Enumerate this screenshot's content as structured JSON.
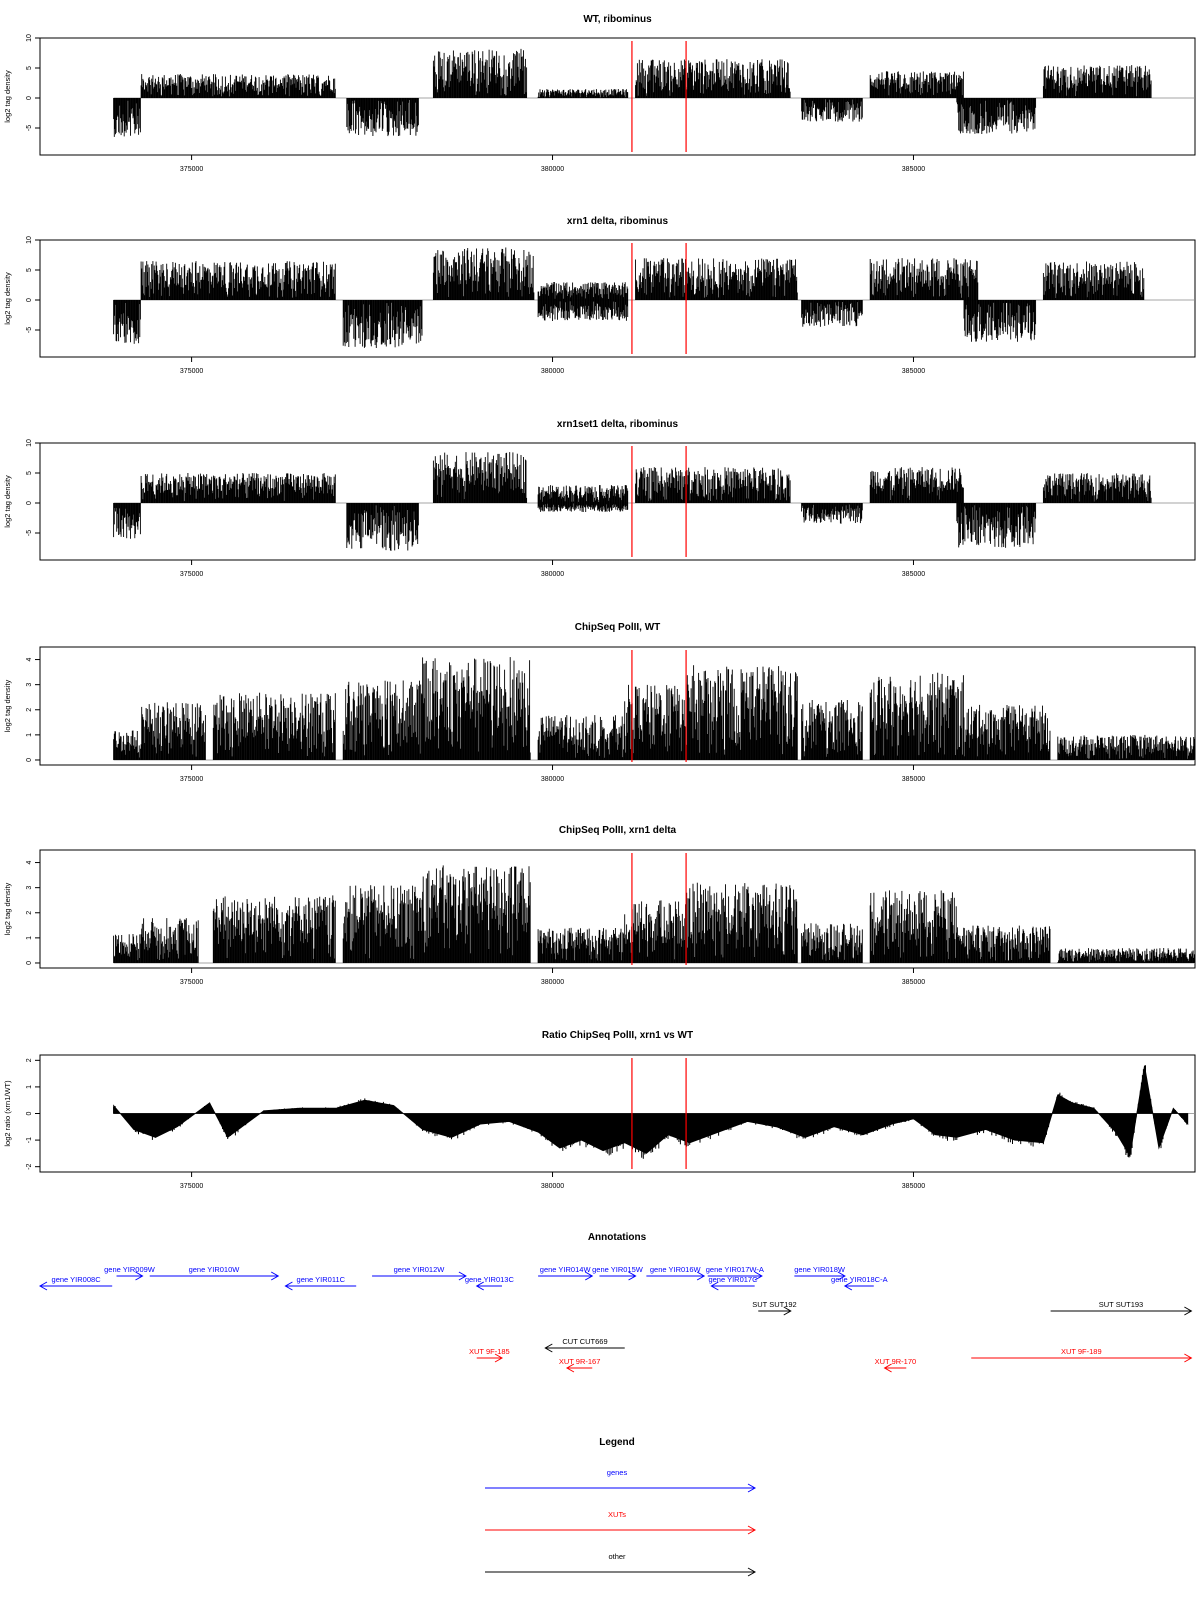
{
  "chart_data": [
    {
      "type": "bar",
      "title": "WT, ribominus",
      "ylabel": "log2 tag density",
      "xlim": [
        372900,
        388900
      ],
      "ylim": [
        -9.5,
        10
      ],
      "yticks": [
        -5,
        0,
        5,
        10
      ],
      "xticks": [
        375000,
        380000,
        385000
      ],
      "markers": [
        381100,
        381850
      ],
      "segments": [
        {
          "x": [
            373920,
            374300
          ],
          "sign": -1,
          "amp": 6.5
        },
        {
          "x": [
            374300,
            377000
          ],
          "sign": 1,
          "amp": 4.0
        },
        {
          "x": [
            377150,
            378150
          ],
          "sign": -1,
          "amp": 6.5
        },
        {
          "x": [
            378350,
            379650
          ],
          "sign": 1,
          "amp": 8.2
        },
        {
          "x": [
            379800,
            381050
          ],
          "sign": 1,
          "amp": 1.5
        },
        {
          "x": [
            381150,
            383300
          ],
          "sign": 1,
          "amp": 6.5
        },
        {
          "x": [
            383450,
            384300
          ],
          "sign": -1,
          "amp": 4.0
        },
        {
          "x": [
            384400,
            385700
          ],
          "sign": 1,
          "amp": 4.5
        },
        {
          "x": [
            385600,
            386700
          ],
          "sign": -1,
          "amp": 6.0
        },
        {
          "x": [
            386800,
            388300
          ],
          "sign": 1,
          "amp": 5.5
        }
      ]
    },
    {
      "type": "bar",
      "title": "xrn1 delta, ribominus",
      "ylabel": "log2 tag density",
      "xlim": [
        372900,
        388900
      ],
      "ylim": [
        -9.5,
        10
      ],
      "yticks": [
        -5,
        0,
        5,
        10
      ],
      "xticks": [
        375000,
        380000,
        385000
      ],
      "markers": [
        381100,
        381850
      ],
      "segments": [
        {
          "x": [
            373920,
            374300
          ],
          "sign": -1,
          "amp": 7.5
        },
        {
          "x": [
            374300,
            377000
          ],
          "sign": 1,
          "amp": 6.5
        },
        {
          "x": [
            377100,
            378200
          ],
          "sign": -1,
          "amp": 8.0
        },
        {
          "x": [
            378350,
            379750
          ],
          "sign": 1,
          "amp": 8.8
        },
        {
          "x": [
            379800,
            381050
          ],
          "sign": 1,
          "amp": 3.0
        },
        {
          "x": [
            379800,
            381050
          ],
          "sign": -1,
          "amp": 3.5
        },
        {
          "x": [
            381150,
            383400
          ],
          "sign": 1,
          "amp": 7.0
        },
        {
          "x": [
            383450,
            384300
          ],
          "sign": -1,
          "amp": 4.5
        },
        {
          "x": [
            384400,
            385900
          ],
          "sign": 1,
          "amp": 7.0
        },
        {
          "x": [
            385700,
            386700
          ],
          "sign": -1,
          "amp": 7.0
        },
        {
          "x": [
            386800,
            388200
          ],
          "sign": 1,
          "amp": 6.5
        }
      ]
    },
    {
      "type": "bar",
      "title": "xrn1set1 delta, ribominus",
      "ylabel": "log2 tag density",
      "xlim": [
        372900,
        388900
      ],
      "ylim": [
        -9.5,
        10
      ],
      "yticks": [
        -5,
        0,
        5,
        10
      ],
      "xticks": [
        375000,
        380000,
        385000
      ],
      "markers": [
        381100,
        381850
      ],
      "segments": [
        {
          "x": [
            373920,
            374300
          ],
          "sign": -1,
          "amp": 6.0
        },
        {
          "x": [
            374300,
            377000
          ],
          "sign": 1,
          "amp": 5.0
        },
        {
          "x": [
            377150,
            378150
          ],
          "sign": -1,
          "amp": 8.0
        },
        {
          "x": [
            378350,
            379650
          ],
          "sign": 1,
          "amp": 8.5
        },
        {
          "x": [
            379800,
            381050
          ],
          "sign": 1,
          "amp": 3.0
        },
        {
          "x": [
            379800,
            381050
          ],
          "sign": -1,
          "amp": 1.5
        },
        {
          "x": [
            381150,
            383300
          ],
          "sign": 1,
          "amp": 6.0
        },
        {
          "x": [
            383450,
            384300
          ],
          "sign": -1,
          "amp": 3.5
        },
        {
          "x": [
            384400,
            385700
          ],
          "sign": 1,
          "amp": 6.0
        },
        {
          "x": [
            385600,
            386700
          ],
          "sign": -1,
          "amp": 7.5
        },
        {
          "x": [
            386800,
            388300
          ],
          "sign": 1,
          "amp": 5.0
        }
      ]
    },
    {
      "type": "bar",
      "title": "ChipSeq PolII, WT",
      "ylabel": "log2 tag density",
      "xlim": [
        372900,
        388900
      ],
      "ylim": [
        -0.2,
        4.5
      ],
      "yticks": [
        0,
        1,
        2,
        3,
        4
      ],
      "xticks": [
        375000,
        380000,
        385000
      ],
      "markers": [
        381100,
        381850
      ],
      "segments": [
        {
          "x": [
            373920,
            374300
          ],
          "sign": 1,
          "amp": 1.2
        },
        {
          "x": [
            374300,
            375200
          ],
          "sign": 1,
          "amp": 2.3
        },
        {
          "x": [
            375300,
            377000
          ],
          "sign": 1,
          "amp": 2.7
        },
        {
          "x": [
            377100,
            378200
          ],
          "sign": 1,
          "amp": 3.2
        },
        {
          "x": [
            378200,
            379700
          ],
          "sign": 1,
          "amp": 4.1
        },
        {
          "x": [
            379800,
            381000
          ],
          "sign": 1,
          "amp": 1.8
        },
        {
          "x": [
            381000,
            381850
          ],
          "sign": 1,
          "amp": 3.0
        },
        {
          "x": [
            381850,
            383400
          ],
          "sign": 1,
          "amp": 3.8
        },
        {
          "x": [
            383450,
            384300
          ],
          "sign": 1,
          "amp": 2.4
        },
        {
          "x": [
            384400,
            385700
          ],
          "sign": 1,
          "amp": 3.5
        },
        {
          "x": [
            385700,
            386900
          ],
          "sign": 1,
          "amp": 2.2
        },
        {
          "x": [
            387000,
            388900
          ],
          "sign": 1,
          "amp": 1.0
        }
      ]
    },
    {
      "type": "bar",
      "title": "ChipSeq PolII, xrn1 delta",
      "ylabel": "log2 tag density",
      "xlim": [
        372900,
        388900
      ],
      "ylim": [
        -0.2,
        4.5
      ],
      "yticks": [
        0,
        1,
        2,
        3,
        4
      ],
      "xticks": [
        375000,
        380000,
        385000
      ],
      "markers": [
        381100,
        381850
      ],
      "segments": [
        {
          "x": [
            373920,
            374300
          ],
          "sign": 1,
          "amp": 1.2
        },
        {
          "x": [
            374300,
            375100
          ],
          "sign": 1,
          "amp": 1.8
        },
        {
          "x": [
            375300,
            377000
          ],
          "sign": 1,
          "amp": 2.7
        },
        {
          "x": [
            377100,
            378200
          ],
          "sign": 1,
          "amp": 3.1
        },
        {
          "x": [
            378200,
            379700
          ],
          "sign": 1,
          "amp": 3.9
        },
        {
          "x": [
            379800,
            381000
          ],
          "sign": 1,
          "amp": 1.4
        },
        {
          "x": [
            381000,
            381850
          ],
          "sign": 1,
          "amp": 2.5
        },
        {
          "x": [
            381850,
            383400
          ],
          "sign": 1,
          "amp": 3.2
        },
        {
          "x": [
            383450,
            384300
          ],
          "sign": 1,
          "amp": 1.6
        },
        {
          "x": [
            384400,
            385600
          ],
          "sign": 1,
          "amp": 2.9
        },
        {
          "x": [
            385600,
            386900
          ],
          "sign": 1,
          "amp": 1.5
        },
        {
          "x": [
            387000,
            388900
          ],
          "sign": 1,
          "amp": 0.6
        }
      ]
    },
    {
      "type": "area",
      "title": "Ratio ChipSeq PolII, xrn1 vs WT",
      "ylabel": "log2 ratio (xrn1/WT)",
      "xlim": [
        372900,
        388900
      ],
      "ylim": [
        -2.2,
        2.2
      ],
      "yticks": [
        -2,
        -1,
        0,
        1,
        2
      ],
      "xticks": [
        375000,
        380000,
        385000
      ],
      "markers": [
        381100,
        381850
      ],
      "x": [
        373920,
        374200,
        374500,
        374800,
        375000,
        375250,
        375500,
        376000,
        376500,
        377000,
        377400,
        377800,
        378200,
        378600,
        379000,
        379400,
        379800,
        380100,
        380400,
        380700,
        381000,
        381300,
        381600,
        381900,
        382300,
        382700,
        383100,
        383500,
        383900,
        384300,
        384700,
        385000,
        385300,
        385600,
        386000,
        386400,
        386800,
        387000,
        387200,
        387500,
        387800,
        388000,
        388200,
        388400,
        388600,
        388800
      ],
      "y": [
        0.3,
        -0.6,
        -0.9,
        -0.5,
        -0.1,
        0.4,
        -0.9,
        0.1,
        0.2,
        0.2,
        0.5,
        0.3,
        -0.6,
        -0.9,
        -0.4,
        -0.3,
        -0.7,
        -1.3,
        -1.0,
        -1.4,
        -1.1,
        -1.5,
        -0.8,
        -1.1,
        -0.7,
        -0.3,
        -0.5,
        -0.9,
        -0.5,
        -0.8,
        -0.4,
        -0.2,
        -0.8,
        -0.9,
        -0.6,
        -1.0,
        -1.1,
        0.7,
        0.4,
        0.2,
        -0.7,
        -1.6,
        1.8,
        -1.3,
        0.2,
        -0.4
      ]
    }
  ],
  "annotations": {
    "title": "Annotations",
    "xlim": [
      372900,
      388900
    ],
    "items": [
      {
        "label": "gene YIR008C",
        "color": "#0000ff",
        "kind": "gene",
        "strand": "-",
        "start": 372900,
        "end": 373900,
        "row": 1
      },
      {
        "label": "gene YIR009W",
        "color": "#0000ff",
        "kind": "gene",
        "strand": "+",
        "start": 373960,
        "end": 374320,
        "row": 0
      },
      {
        "label": "gene YIR010W",
        "color": "#0000ff",
        "kind": "gene",
        "strand": "+",
        "start": 374420,
        "end": 376200,
        "row": 0
      },
      {
        "label": "gene YIR011C",
        "color": "#0000ff",
        "kind": "gene",
        "strand": "-",
        "start": 376300,
        "end": 377280,
        "row": 1
      },
      {
        "label": "gene YIR012W",
        "color": "#0000ff",
        "kind": "gene",
        "strand": "+",
        "start": 377500,
        "end": 378800,
        "row": 0
      },
      {
        "label": "gene YIR013C",
        "color": "#0000ff",
        "kind": "gene",
        "strand": "-",
        "start": 378950,
        "end": 379300,
        "row": 1
      },
      {
        "label": "gene YIR014W",
        "color": "#0000ff",
        "kind": "gene",
        "strand": "+",
        "start": 379800,
        "end": 380550,
        "row": 0
      },
      {
        "label": "gene YIR015W",
        "color": "#0000ff",
        "kind": "gene",
        "strand": "+",
        "start": 380650,
        "end": 381150,
        "row": 0
      },
      {
        "label": "gene YIR016W",
        "color": "#0000ff",
        "kind": "gene",
        "strand": "+",
        "start": 381300,
        "end": 382100,
        "row": 0
      },
      {
        "label": "gene YIR017W-A",
        "color": "#0000ff",
        "kind": "gene",
        "strand": "+",
        "start": 382150,
        "end": 382900,
        "row": 0
      },
      {
        "label": "gene YIR017C",
        "color": "#0000ff",
        "kind": "gene",
        "strand": "-",
        "start": 382200,
        "end": 382800,
        "row": 1
      },
      {
        "label": "gene YIR018W",
        "color": "#0000ff",
        "kind": "gene",
        "strand": "+",
        "start": 383350,
        "end": 384050,
        "row": 0
      },
      {
        "label": "gene YIR018C-A",
        "color": "#0000ff",
        "kind": "gene",
        "strand": "-",
        "start": 384050,
        "end": 384450,
        "row": 1
      },
      {
        "label": "SUT SUT192",
        "color": "#000000",
        "kind": "other",
        "strand": "+",
        "start": 382850,
        "end": 383300,
        "row": 2
      },
      {
        "label": "SUT SUT193",
        "color": "#000000",
        "kind": "other",
        "strand": "+",
        "start": 386900,
        "end": 388850,
        "row": 2
      },
      {
        "label": "CUT CUT669",
        "color": "#000000",
        "kind": "other",
        "strand": "-",
        "start": 379900,
        "end": 381000,
        "row": 3
      },
      {
        "label": "XUT 9F-185",
        "color": "#ff0000",
        "kind": "xut",
        "strand": "+",
        "start": 378950,
        "end": 379300,
        "row": 4
      },
      {
        "label": "XUT 9R-167",
        "color": "#ff0000",
        "kind": "xut",
        "strand": "-",
        "start": 380200,
        "end": 380550,
        "row": 5
      },
      {
        "label": "XUT 9R-170",
        "color": "#ff0000",
        "kind": "xut",
        "strand": "-",
        "start": 384600,
        "end": 384900,
        "row": 5
      },
      {
        "label": "XUT 9F-189",
        "color": "#ff0000",
        "kind": "xut",
        "strand": "+",
        "start": 385800,
        "end": 388850,
        "row": 4
      }
    ]
  },
  "legend": {
    "title": "Legend",
    "entries": [
      {
        "label": "genes",
        "color": "#0000ff"
      },
      {
        "label": "XUTs",
        "color": "#ff0000"
      },
      {
        "label": "other",
        "color": "#000000"
      }
    ]
  }
}
